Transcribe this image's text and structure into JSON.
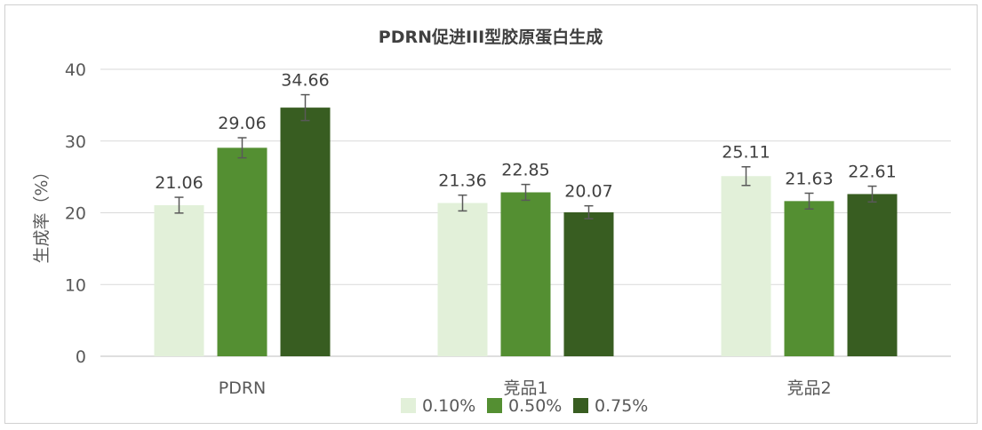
{
  "chart_data": {
    "type": "bar",
    "title": "PDRN促进III型胶原蛋白生成",
    "xlabel": "",
    "ylabel": "生成率（%）",
    "ylim": [
      0,
      40
    ],
    "yticks": [
      0,
      10,
      20,
      30,
      40
    ],
    "grid": true,
    "legend_position": "bottom",
    "categories": [
      "PDRN",
      "竞品1",
      "竞品2"
    ],
    "series": [
      {
        "name": "0.10%",
        "color": "#e2f0d9",
        "values": [
          21.06,
          21.36,
          25.11
        ],
        "errors": [
          1.1,
          1.1,
          1.3
        ]
      },
      {
        "name": "0.50%",
        "color": "#548f32",
        "values": [
          29.06,
          22.85,
          21.63
        ],
        "errors": [
          1.4,
          1.1,
          1.1
        ]
      },
      {
        "name": "0.75%",
        "color": "#385d21",
        "values": [
          34.66,
          20.07,
          22.61
        ],
        "errors": [
          1.8,
          0.9,
          1.1
        ]
      }
    ],
    "data_labels": [
      [
        "21.06",
        "21.36",
        "25.11"
      ],
      [
        "29.06",
        "22.85",
        "21.63"
      ],
      [
        "34.66",
        "20.07",
        "22.61"
      ]
    ]
  }
}
